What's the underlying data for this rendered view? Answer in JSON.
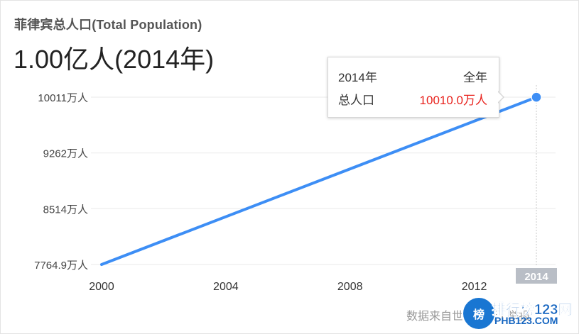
{
  "header": {
    "title": "菲律宾总人口(Total Population)",
    "headline": "1.00亿人(2014年)"
  },
  "tooltip": {
    "year": "2014年",
    "period": "全年",
    "metric": "总人口",
    "value": "10010.0万人"
  },
  "source_text": "数据来自世界银行 · 举报",
  "watermark": {
    "badge": "榜",
    "main": "排行榜123网",
    "sub": "PHB123.COM"
  },
  "colors": {
    "line": "#3d8ef5",
    "tooltip_value": "#e8221d",
    "highlight_tick_bg": "#b9bec6"
  },
  "chart_data": {
    "type": "line",
    "title": "菲律宾总人口(Total Population)",
    "xlabel": "",
    "ylabel": "",
    "x": [
      2000,
      2014
    ],
    "series": [
      {
        "values": [
          7764.9,
          10010.0
        ]
      }
    ],
    "y_ticks": [
      7764.9,
      8514,
      9262,
      10011
    ],
    "y_tick_labels": [
      "7764.9万人",
      "8514万人",
      "9262万人",
      "10011万人"
    ],
    "x_ticks": [
      2000,
      2004,
      2008,
      2012,
      2014
    ],
    "x_tick_labels": [
      "2000",
      "2004",
      "2008",
      "2012",
      "2014"
    ],
    "highlighted_x": 2014,
    "xlim": [
      2000,
      2014
    ],
    "ylim": [
      7764.9,
      10011
    ],
    "grid": true,
    "legend": "none"
  }
}
